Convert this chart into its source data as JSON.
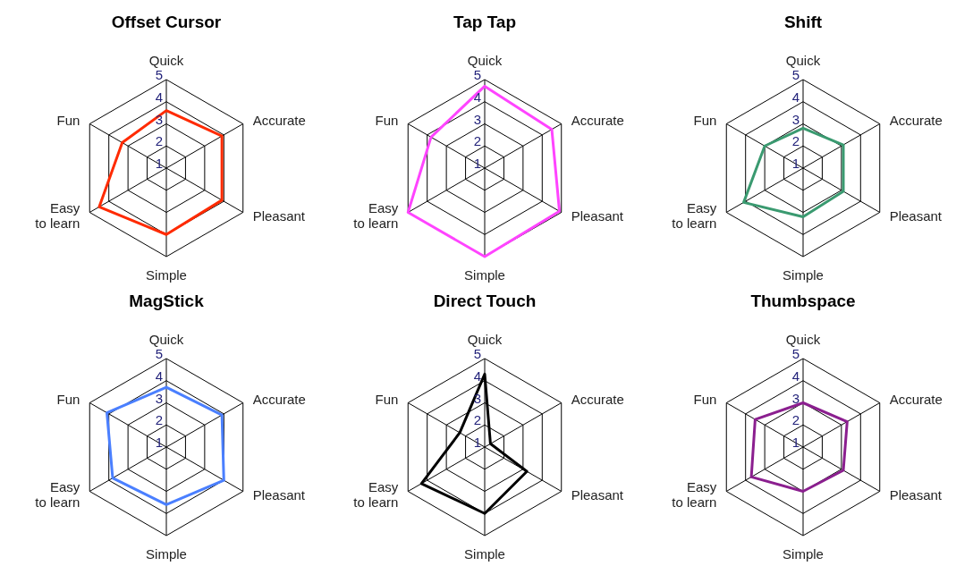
{
  "chart_data": [
    {
      "type": "radar",
      "title": "Offset Cursor",
      "categories": [
        "Quick",
        "Accurate",
        "Pleasant",
        "Simple",
        "Easy to learn",
        "Fun"
      ],
      "series": [
        {
          "color": "#ff2a00",
          "values": [
            3.6,
            3.9,
            3.9,
            4.0,
            4.5,
            3.3
          ]
        }
      ],
      "ylim": [
        1,
        5
      ],
      "yticks": [
        1,
        2,
        3,
        4,
        5
      ],
      "grid": true,
      "legend": false
    },
    {
      "type": "radar",
      "title": "Tap Tap",
      "categories": [
        "Quick",
        "Accurate",
        "Pleasant",
        "Simple",
        "Easy to learn",
        "Fun"
      ],
      "series": [
        {
          "color": "#ff44ff",
          "values": [
            4.7,
            4.5,
            4.9,
            5.0,
            5.0,
            3.8
          ]
        }
      ],
      "ylim": [
        1,
        5
      ],
      "yticks": [
        1,
        2,
        3,
        4,
        5
      ],
      "grid": true,
      "legend": false
    },
    {
      "type": "radar",
      "title": "Shift",
      "categories": [
        "Quick",
        "Accurate",
        "Pleasant",
        "Simple",
        "Easy to learn",
        "Fun"
      ],
      "series": [
        {
          "color": "#3a9a70",
          "values": [
            2.8,
            3.1,
            3.1,
            3.2,
            4.1,
            3.0
          ]
        }
      ],
      "ylim": [
        1,
        5
      ],
      "yticks": [
        1,
        2,
        3,
        4,
        5
      ],
      "grid": true,
      "legend": false
    },
    {
      "type": "radar",
      "title": "MagStick",
      "categories": [
        "Quick",
        "Accurate",
        "Pleasant",
        "Simple",
        "Easy to learn",
        "Fun"
      ],
      "series": [
        {
          "color": "#4a7fff",
          "values": [
            3.7,
            3.9,
            4.0,
            3.6,
            3.8,
            4.1
          ]
        }
      ],
      "ylim": [
        1,
        5
      ],
      "yticks": [
        1,
        2,
        3,
        4,
        5
      ],
      "grid": true,
      "legend": false
    },
    {
      "type": "radar",
      "title": "Direct Touch",
      "categories": [
        "Quick",
        "Accurate",
        "Pleasant",
        "Simple",
        "Easy to learn",
        "Fun"
      ],
      "series": [
        {
          "color": "#000000",
          "values": [
            4.3,
            1.3,
            3.2,
            4.0,
            4.3,
            2.3
          ]
        }
      ],
      "ylim": [
        1,
        5
      ],
      "yticks": [
        1,
        2,
        3,
        4,
        5
      ],
      "grid": true,
      "legend": false
    },
    {
      "type": "radar",
      "title": "Thumbspace",
      "categories": [
        "Quick",
        "Accurate",
        "Pleasant",
        "Simple",
        "Easy to learn",
        "Fun"
      ],
      "series": [
        {
          "color": "#8b1f8f",
          "values": [
            3.0,
            3.3,
            3.1,
            3.0,
            3.7,
            3.5
          ]
        }
      ],
      "ylim": [
        1,
        5
      ],
      "yticks": [
        1,
        2,
        3,
        4,
        5
      ],
      "grid": true,
      "legend": false
    }
  ]
}
